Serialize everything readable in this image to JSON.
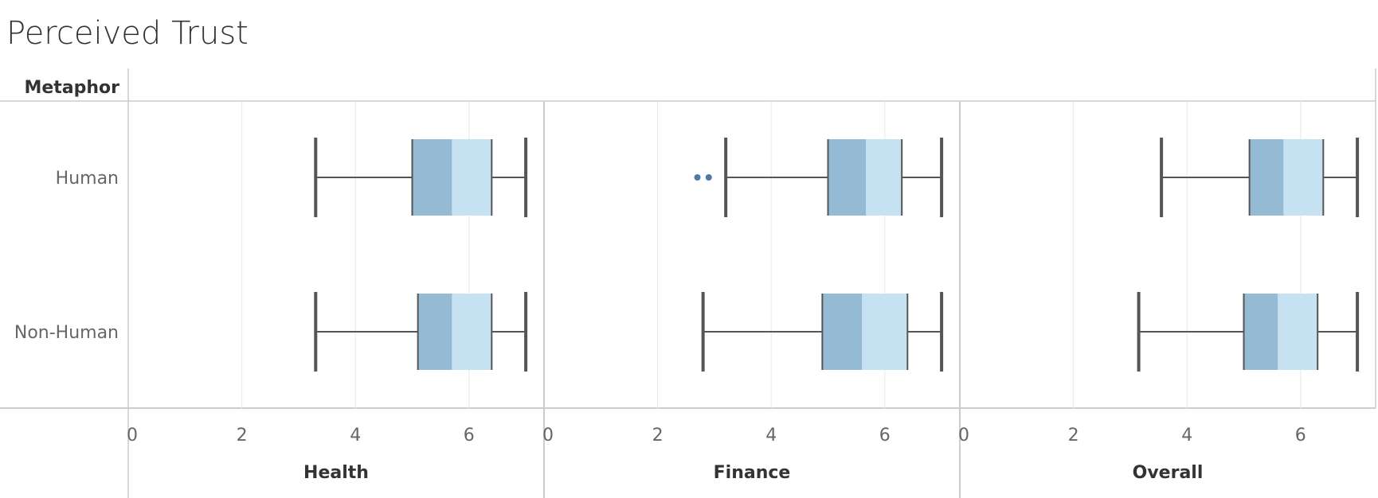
{
  "chart_data": {
    "type": "box",
    "title": "Perceived Trust",
    "row_header": "Metaphor",
    "rows": [
      "Human",
      "Non-Human"
    ],
    "panels": [
      {
        "name": "Health",
        "groups": [
          {
            "row": "Human",
            "min": 3.3,
            "q1": 5.0,
            "median": 5.7,
            "q3": 6.4,
            "max": 7.0,
            "outliers": []
          },
          {
            "row": "Non-Human",
            "min": 3.3,
            "q1": 5.1,
            "median": 5.7,
            "q3": 6.4,
            "max": 7.0,
            "outliers": []
          }
        ]
      },
      {
        "name": "Finance",
        "groups": [
          {
            "row": "Human",
            "min": 3.2,
            "q1": 5.0,
            "median": 5.67,
            "q3": 6.3,
            "max": 7.0,
            "outliers": [
              2.7,
              2.9
            ]
          },
          {
            "row": "Non-Human",
            "min": 2.8,
            "q1": 4.9,
            "median": 5.6,
            "q3": 6.4,
            "max": 7.0,
            "outliers": []
          }
        ]
      },
      {
        "name": "Overall",
        "groups": [
          {
            "row": "Human",
            "min": 3.55,
            "q1": 5.1,
            "median": 5.7,
            "q3": 6.4,
            "max": 7.0,
            "outliers": []
          },
          {
            "row": "Non-Human",
            "min": 3.15,
            "q1": 5.0,
            "median": 5.6,
            "q3": 6.3,
            "max": 7.0,
            "outliers": []
          }
        ]
      }
    ],
    "x_ticks": [
      0,
      2,
      4,
      6
    ],
    "xlim": [
      0,
      7.2
    ],
    "grid": true,
    "colors": {
      "lower_box": "#94bad4",
      "upper_box": "#c6e1f2",
      "whisker": "#555555",
      "outlier": "#4e79a7",
      "grid": "#ebebeb",
      "border": "#cccccc"
    }
  }
}
